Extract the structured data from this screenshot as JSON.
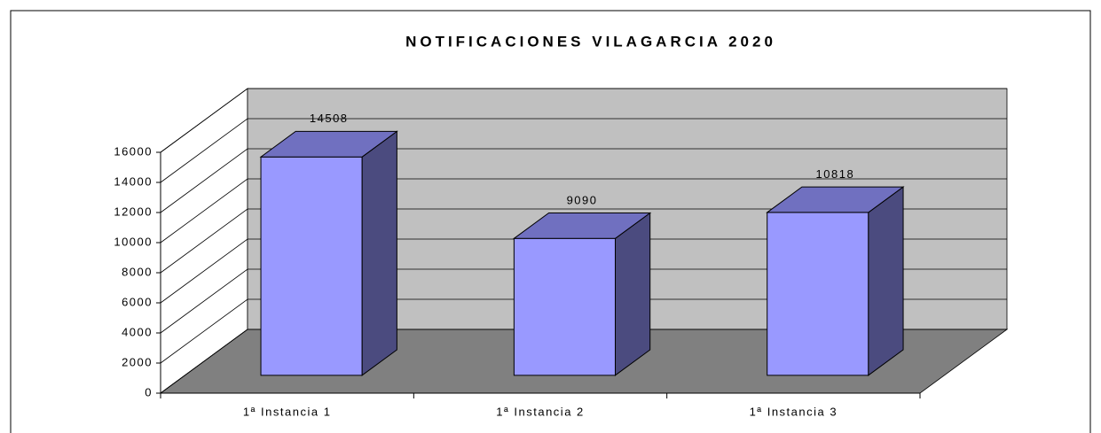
{
  "chart_data": {
    "type": "bar3d",
    "title": "NOTIFICACIONES VILAGARCIA 2020",
    "categories": [
      "1ª Instancia 1",
      "1ª Instancia 2",
      "1ª Instancia 3"
    ],
    "values": [
      14508,
      9090,
      10818
    ],
    "color": "#9999ff",
    "ylim": [
      0,
      16000
    ],
    "yticks": [
      0,
      2000,
      4000,
      6000,
      8000,
      10000,
      12000,
      14000,
      16000
    ],
    "grid": true
  }
}
